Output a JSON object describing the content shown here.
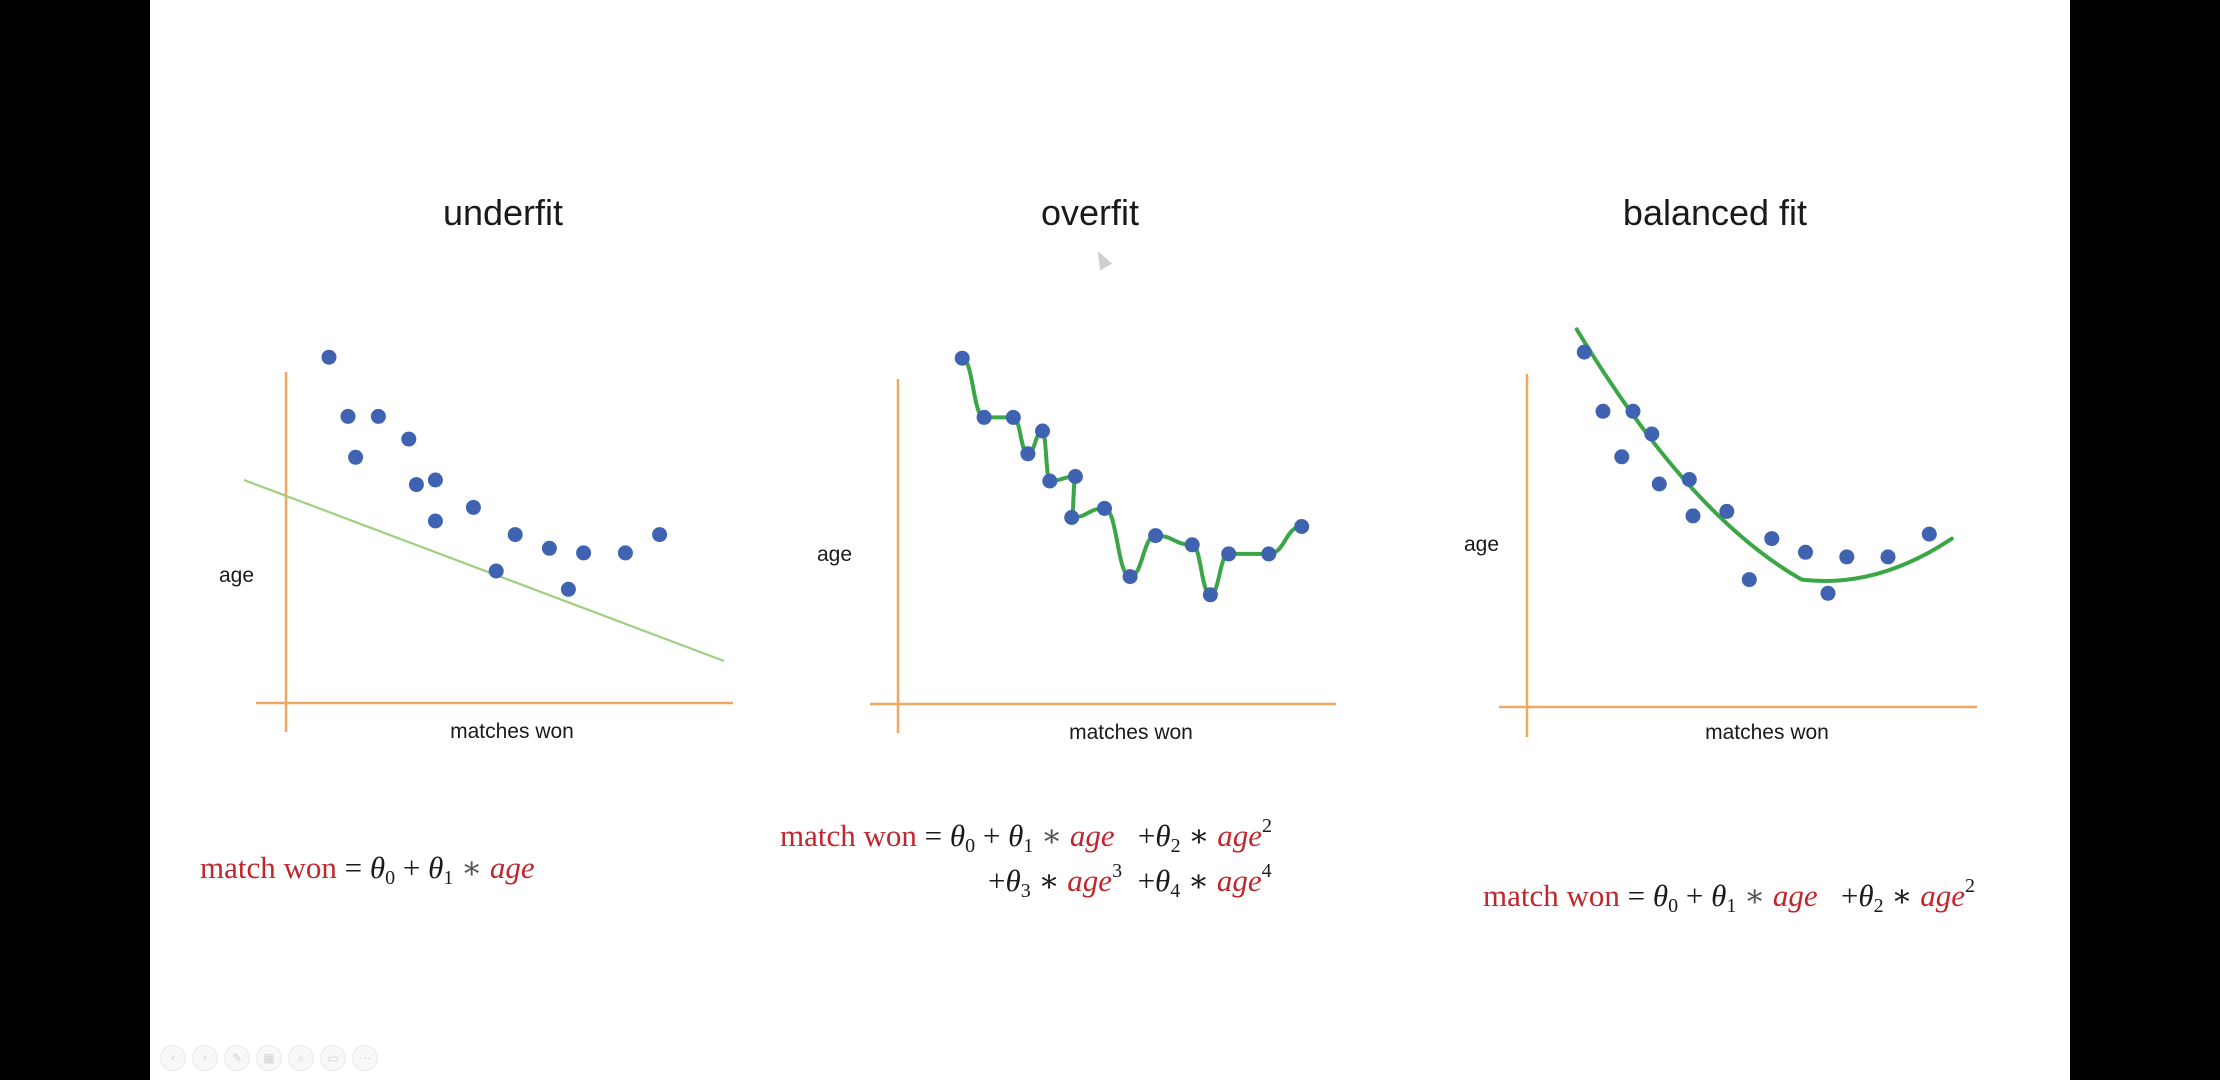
{
  "panels": [
    {
      "title": "underfit",
      "ylabel": "age",
      "xlabel": "matches won",
      "equation": {
        "lhs": "match won",
        "eq": "=",
        "t0": "θ",
        "t0sub": "0",
        "plus1": "+",
        "t1": "θ",
        "t1sub": "1",
        "mul1": "∗",
        "v1": "age"
      }
    },
    {
      "title": "overfit",
      "ylabel": "age",
      "xlabel": "matches won",
      "equation": {
        "lhs": "match won",
        "eq": "=",
        "t0": "θ",
        "t0sub": "0",
        "plus1": "+",
        "t1": "θ",
        "t1sub": "1",
        "mul1": "∗",
        "v1": "age",
        "plus2": "+",
        "t2": "θ",
        "t2sub": "2",
        "mul2": "∗",
        "v2": "age",
        "v2sup": "2",
        "plus3": "+",
        "t3": "θ",
        "t3sub": "3",
        "mul3": "∗",
        "v3": "age",
        "v3sup": "3",
        "plus4": "+",
        "t4": "θ",
        "t4sub": "4",
        "mul4": "∗",
        "v4": "age",
        "v4sup": "4"
      }
    },
    {
      "title": "balanced fit",
      "ylabel": "age",
      "xlabel": "matches won",
      "equation": {
        "lhs": "match won",
        "eq": "=",
        "t0": "θ",
        "t0sub": "0",
        "plus1": "+",
        "t1": "θ",
        "t1sub": "1",
        "mul1": "∗",
        "v1": "age",
        "plus2": "+",
        "t2": "θ",
        "t2sub": "2",
        "mul2": "∗",
        "v2": "age",
        "v2sup": "2"
      }
    }
  ],
  "colors": {
    "axis": "#f0a860",
    "point": "#3f63b0",
    "fit_line_underfit": "#9fcf80",
    "fit_line": "#3aa646",
    "equation_red": "#c0262d"
  },
  "scatter": {
    "underfit": [
      [
        0.5,
        7.6
      ],
      [
        1.0,
        6.3
      ],
      [
        1.8,
        6.3
      ],
      [
        1.2,
        5.4
      ],
      [
        2.6,
        5.8
      ],
      [
        2.8,
        4.8
      ],
      [
        3.3,
        4.9
      ],
      [
        3.3,
        4.0
      ],
      [
        4.3,
        4.3
      ],
      [
        4.9,
        2.9
      ],
      [
        5.4,
        3.7
      ],
      [
        6.3,
        3.4
      ],
      [
        6.8,
        2.5
      ],
      [
        7.2,
        3.3
      ],
      [
        8.3,
        3.3
      ],
      [
        9.2,
        3.7
      ]
    ],
    "overfit": [
      [
        0.8,
        7.6
      ],
      [
        1.4,
        6.3
      ],
      [
        2.2,
        6.3
      ],
      [
        2.6,
        5.5
      ],
      [
        3.0,
        6.0
      ],
      [
        3.2,
        4.9
      ],
      [
        3.9,
        5.0
      ],
      [
        3.8,
        4.1
      ],
      [
        4.7,
        4.3
      ],
      [
        5.4,
        2.8
      ],
      [
        6.1,
        3.7
      ],
      [
        7.1,
        3.5
      ],
      [
        7.6,
        2.4
      ],
      [
        8.1,
        3.3
      ],
      [
        9.2,
        3.3
      ],
      [
        10.1,
        3.9
      ]
    ],
    "balanced": [
      [
        0.7,
        7.8
      ],
      [
        1.2,
        6.5
      ],
      [
        2.0,
        6.5
      ],
      [
        1.7,
        5.5
      ],
      [
        2.5,
        6.0
      ],
      [
        2.7,
        4.9
      ],
      [
        3.5,
        5.0
      ],
      [
        3.6,
        4.2
      ],
      [
        4.5,
        4.3
      ],
      [
        5.1,
        2.8
      ],
      [
        5.7,
        3.7
      ],
      [
        6.6,
        3.4
      ],
      [
        7.2,
        2.5
      ],
      [
        7.7,
        3.3
      ],
      [
        8.8,
        3.3
      ],
      [
        9.9,
        3.8
      ]
    ]
  }
}
